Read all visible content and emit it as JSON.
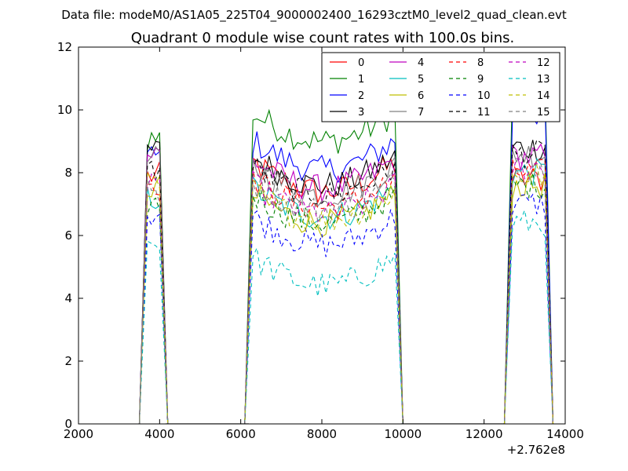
{
  "chart_data": {
    "type": "line",
    "suptitle": "Data file: modeM0/AS1A05_225T04_9000002400_16293cztM0_level2_quad_clean.evt",
    "title": "Quadrant 0 module wise count rates with 100.0s bins.",
    "xlabel": "",
    "ylabel": "",
    "x_offset_label": "+2.762e8",
    "xlim": [
      2000,
      14000
    ],
    "ylim": [
      0,
      12
    ],
    "xticks": [
      "2000",
      "4000",
      "6000",
      "8000",
      "10000",
      "12000",
      "14000"
    ],
    "yticks": [
      "0",
      "2",
      "4",
      "6",
      "8",
      "10",
      "12"
    ],
    "legend_position": "top-right",
    "gaps": [
      [
        4150,
        6200
      ],
      [
        9950,
        12500
      ]
    ],
    "segments": [
      {
        "t0": 3700,
        "t1": 4000
      },
      {
        "t0": 6300,
        "t1": 9800
      },
      {
        "t0": 12700,
        "t1": 13500
      }
    ],
    "series": [
      {
        "name": "0",
        "color": "#ff0000",
        "dashed": false,
        "levels": [
          7.9,
          8.3,
          7.8
        ]
      },
      {
        "name": "1",
        "color": "#008000",
        "dashed": false,
        "levels": [
          9.1,
          9.9,
          10.8
        ]
      },
      {
        "name": "2",
        "color": "#0000ff",
        "dashed": false,
        "levels": [
          8.5,
          9.0,
          9.9
        ]
      },
      {
        "name": "3",
        "color": "#000000",
        "dashed": false,
        "levels": [
          8.7,
          8.5,
          8.8
        ]
      },
      {
        "name": "4",
        "color": "#bf00bf",
        "dashed": false,
        "levels": [
          8.6,
          8.4,
          8.5
        ]
      },
      {
        "name": "5",
        "color": "#00bfbf",
        "dashed": false,
        "levels": [
          7.2,
          7.5,
          8.0
        ]
      },
      {
        "name": "6",
        "color": "#bfbf00",
        "dashed": false,
        "levels": [
          7.5,
          7.3,
          7.6
        ]
      },
      {
        "name": "7",
        "color": "#808080",
        "dashed": false,
        "levels": [
          8.4,
          8.2,
          8.6
        ]
      },
      {
        "name": "8",
        "color": "#ff0000",
        "dashed": true,
        "levels": [
          7.7,
          7.8,
          8.0
        ]
      },
      {
        "name": "9",
        "color": "#008000",
        "dashed": true,
        "levels": [
          7.0,
          7.3,
          7.6
        ]
      },
      {
        "name": "10",
        "color": "#0000ff",
        "dashed": true,
        "levels": [
          6.7,
          6.6,
          7.0
        ]
      },
      {
        "name": "11",
        "color": "#000000",
        "dashed": true,
        "levels": [
          8.1,
          8.2,
          8.6
        ]
      },
      {
        "name": "12",
        "color": "#bf00bf",
        "dashed": true,
        "levels": [
          7.8,
          7.6,
          8.2
        ]
      },
      {
        "name": "13",
        "color": "#00bfbf",
        "dashed": true,
        "levels": [
          5.8,
          5.3,
          6.4
        ]
      },
      {
        "name": "14",
        "color": "#bfbf00",
        "dashed": true,
        "levels": [
          7.6,
          7.4,
          7.9
        ]
      },
      {
        "name": "15",
        "color": "#808080",
        "dashed": true,
        "levels": [
          7.4,
          7.7,
          8.1
        ]
      }
    ]
  }
}
